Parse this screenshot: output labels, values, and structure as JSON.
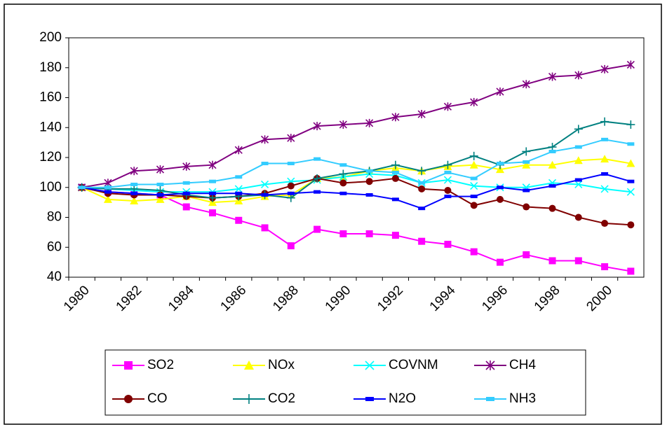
{
  "chart_data": {
    "type": "line",
    "categories": [
      "1980",
      null,
      "1982",
      null,
      "1984",
      null,
      "1986",
      null,
      "1988",
      null,
      "1990",
      null,
      "1992",
      null,
      "1994",
      null,
      "1996",
      null,
      "1998",
      null,
      "2000",
      null
    ],
    "series": [
      {
        "name": "SO2",
        "color": "#ff00ff",
        "marker": "square",
        "values": [
          100,
          97,
          96,
          95,
          87,
          83,
          78,
          73,
          61,
          72,
          69,
          69,
          68,
          64,
          62,
          57,
          50,
          55,
          51,
          51,
          47,
          44
        ]
      },
      {
        "name": "NOx",
        "color": "#ffff00",
        "marker": "triangle",
        "values": [
          100,
          92,
          91,
          92,
          94,
          90,
          91,
          94,
          95,
          106,
          107,
          111,
          113,
          111,
          114,
          115,
          112,
          115,
          115,
          118,
          119,
          116
        ]
      },
      {
        "name": "COVNM",
        "color": "#00ffff",
        "marker": "x",
        "values": [
          100,
          99,
          98,
          97,
          97,
          97,
          99,
          102,
          104,
          105,
          107,
          109,
          108,
          103,
          105,
          101,
          100,
          100,
          103,
          102,
          99,
          97
        ]
      },
      {
        "name": "CH4",
        "color": "#800080",
        "marker": "star",
        "values": [
          100,
          103,
          111,
          112,
          114,
          115,
          125,
          132,
          133,
          141,
          142,
          143,
          147,
          149,
          154,
          157,
          164,
          169,
          174,
          175,
          179,
          182
        ]
      },
      {
        "name": "CO",
        "color": "#800000",
        "marker": "circle",
        "values": [
          100,
          96,
          95,
          95,
          94,
          93,
          94,
          96,
          101,
          106,
          103,
          104,
          106,
          99,
          98,
          88,
          92,
          87,
          86,
          80,
          76,
          75
        ]
      },
      {
        "name": "CO2",
        "color": "#008080",
        "marker": "plus",
        "values": [
          100,
          99,
          99,
          98,
          95,
          93,
          94,
          95,
          93,
          106,
          109,
          111,
          115,
          111,
          115,
          121,
          115,
          124,
          127,
          139,
          144,
          142
        ]
      },
      {
        "name": "N2O",
        "color": "#0000ff",
        "marker": "dash",
        "values": [
          100,
          97,
          96,
          95,
          96,
          96,
          96,
          95,
          96,
          97,
          96,
          95,
          92,
          86,
          94,
          94,
          100,
          98,
          101,
          105,
          109,
          104
        ]
      },
      {
        "name": "NH3",
        "color": "#33ccff",
        "marker": "dash",
        "values": [
          100,
          100,
          102,
          102,
          103,
          104,
          107,
          116,
          116,
          119,
          115,
          111,
          110,
          103,
          110,
          106,
          116,
          117,
          124,
          127,
          132,
          129
        ]
      }
    ],
    "ylim": [
      40,
      200
    ],
    "yticks": [
      40,
      60,
      80,
      100,
      120,
      140,
      160,
      180,
      200
    ],
    "grid": false
  }
}
